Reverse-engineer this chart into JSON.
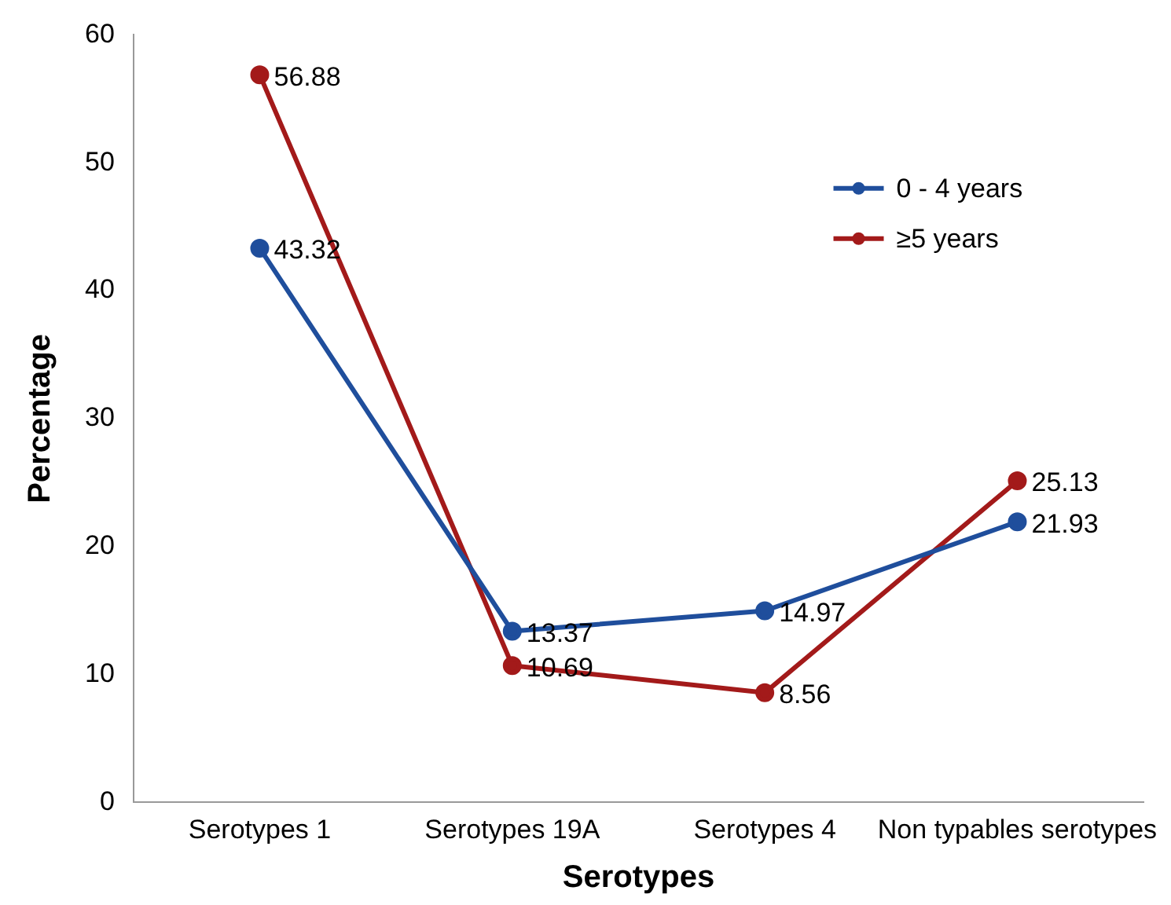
{
  "chart_data": {
    "type": "line",
    "xlabel": "Serotypes",
    "ylabel": "Percentage",
    "categories": [
      "Serotypes 1",
      "Serotypes 19A",
      "Serotypes 4",
      "Non typables serotypes"
    ],
    "series": [
      {
        "name": "0 - 4 years",
        "color": "#1f4e9c",
        "values": [
          43.32,
          13.37,
          14.97,
          21.93
        ]
      },
      {
        "name": "≥5 years",
        "color": "#a31a1a",
        "values": [
          56.88,
          10.69,
          8.56,
          25.13
        ]
      }
    ],
    "ylim": [
      0,
      60
    ],
    "yticks": [
      0,
      10,
      20,
      30,
      40,
      50,
      60
    ],
    "grid": false,
    "legend": "top right",
    "marker": "circle",
    "line_style": "solid",
    "data_labels": true
  }
}
